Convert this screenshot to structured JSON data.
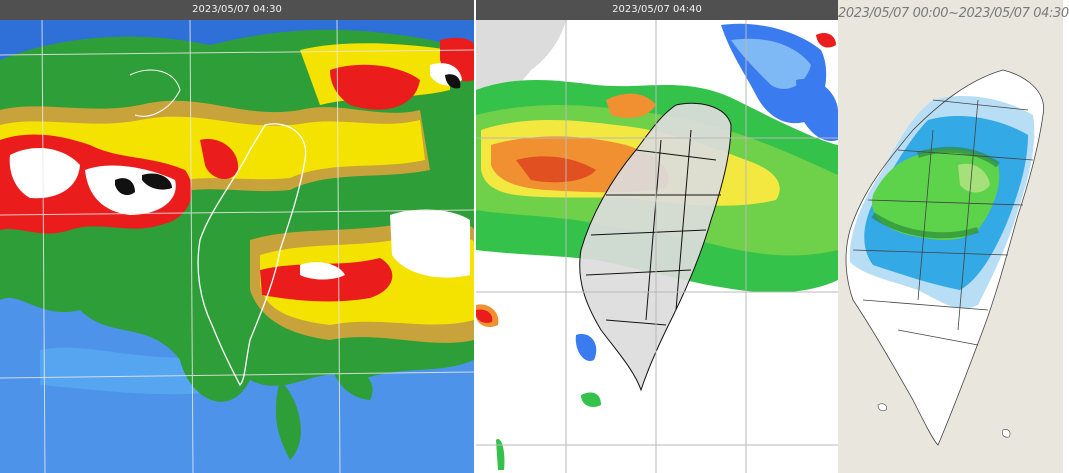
{
  "panels": [
    {
      "time_label": "2023/05/07 04:30",
      "kind": "satellite-ir-enhanced"
    },
    {
      "time_label": "2023/05/07 04:40",
      "kind": "radar-composite-reflectivity"
    },
    {
      "time_label": "2023/05/07 00:00~2023/05/07 04:30",
      "kind": "accumulated-rainfall"
    }
  ],
  "colors": {
    "ir_blue": "#2f6fd8",
    "ir_cyan": "#58aaf2",
    "ir_green": "#2e9e38",
    "ir_yellow": "#f4e200",
    "ir_orange": "#c8a23a",
    "ir_red": "#ea1c1c",
    "radar_green": "#34c24a",
    "radar_yellow": "#f2e840",
    "radar_orange": "#f09030",
    "radar_blue": "#3a7bf0",
    "rain_lightblue": "#b8def6",
    "rain_blue": "#33a9e6",
    "rain_green": "#5cd34a",
    "land_grey": "#dcdcdc"
  }
}
